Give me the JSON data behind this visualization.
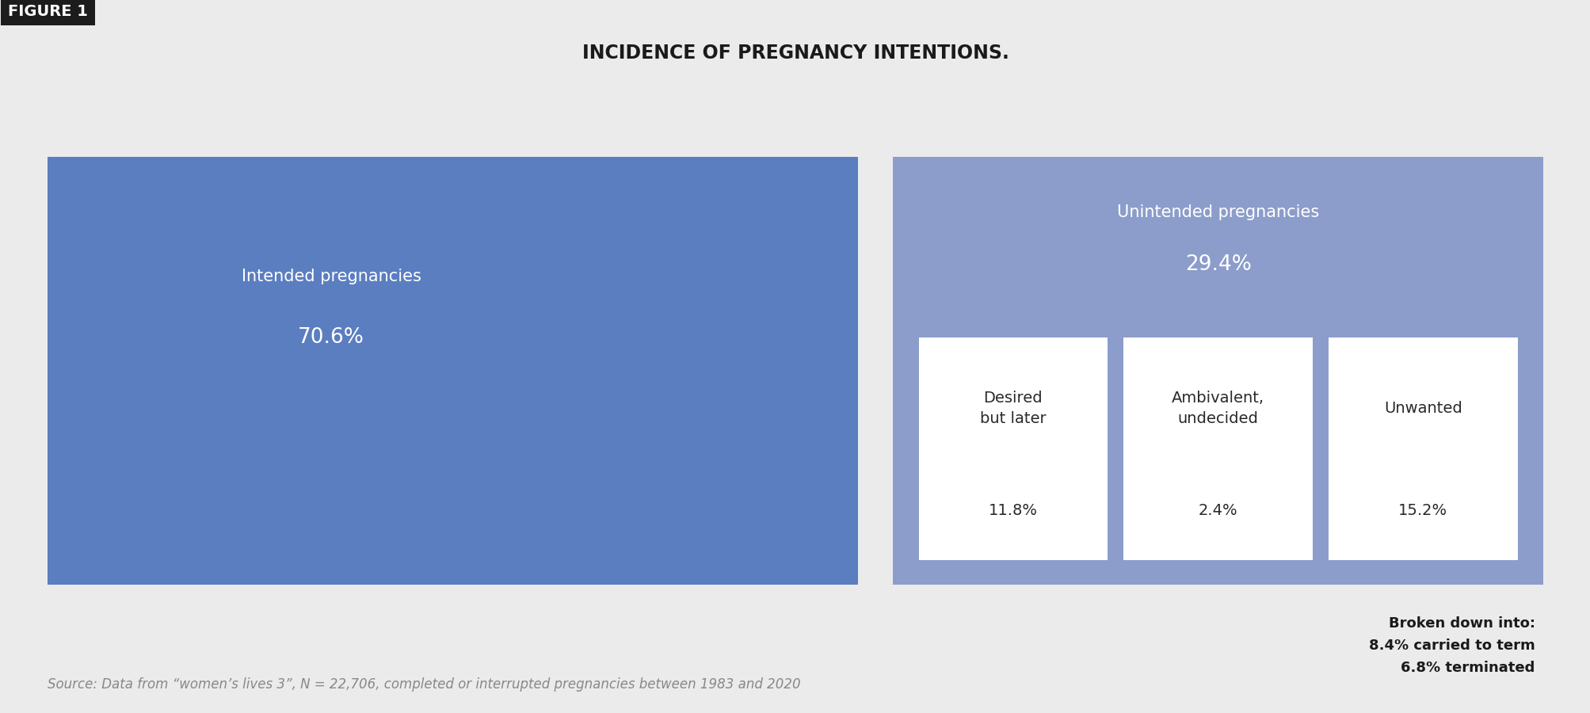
{
  "title": "INCIDENCE OF PREGNANCY INTENTIONS.",
  "figure_label": "FIGURE 1",
  "background_color": "#ebebeb",
  "figure_label_bg": "#1c1c1c",
  "figure_label_color": "#ffffff",
  "intended_color": "#5b7ec1",
  "unintended_color": "#8c9dcb",
  "white_box_color": "#ffffff",
  "intended_label": "Intended pregnancies",
  "intended_pct": "70.6%",
  "unintended_label": "Unintended pregnancies",
  "unintended_pct": "29.4%",
  "sub_boxes": [
    {
      "label": "Desired\nbut later",
      "pct": "11.8%"
    },
    {
      "label": "Ambivalent,\nundecided",
      "pct": "2.4%"
    },
    {
      "label": "Unwanted",
      "pct": "15.2%"
    }
  ],
  "breakdown_text": "Broken down into:\n8.4% carried to term\n6.8% terminated",
  "source_text": "Source: Data from “women’s lives 3”, N = 22,706, completed or interrupted pregnancies between 1983 and 2020",
  "title_fontsize": 17,
  "label_fontsize": 15,
  "pct_fontsize": 19,
  "sub_label_fontsize": 14,
  "sub_pct_fontsize": 14,
  "breakdown_fontsize": 13,
  "source_fontsize": 12,
  "figure_label_fontsize": 14
}
